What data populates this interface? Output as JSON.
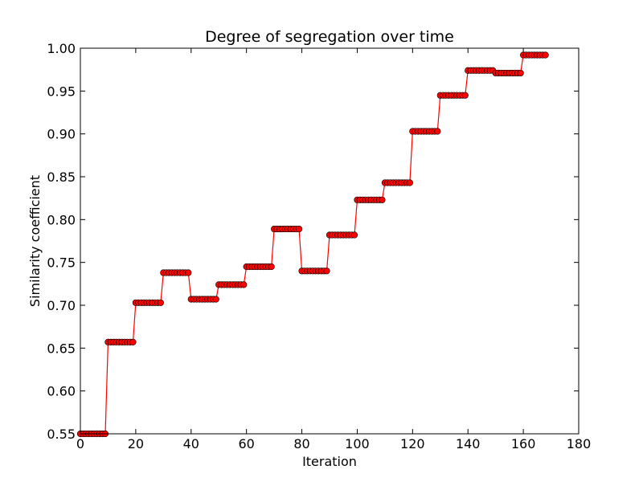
{
  "chart_data": {
    "type": "line",
    "title": "Degree of segregation over time",
    "xlabel": "Iteration",
    "ylabel": "Similarity coefficient",
    "xlim": [
      0,
      180
    ],
    "ylim": [
      0.55,
      1.0
    ],
    "xticks": [
      "0",
      "20",
      "40",
      "60",
      "80",
      "100",
      "120",
      "140",
      "160",
      "180"
    ],
    "yticks": [
      "0.55",
      "0.60",
      "0.65",
      "0.70",
      "0.75",
      "0.80",
      "0.85",
      "0.90",
      "0.95",
      "1.00"
    ],
    "grid": false,
    "legend": "none",
    "series": [
      {
        "color": "#ff0000",
        "marker": "circle",
        "x": [
          0,
          1,
          2,
          3,
          4,
          5,
          6,
          7,
          8,
          9,
          10,
          11,
          12,
          13,
          14,
          15,
          16,
          17,
          18,
          19,
          20,
          21,
          22,
          23,
          24,
          25,
          26,
          27,
          28,
          29,
          30,
          31,
          32,
          33,
          34,
          35,
          36,
          37,
          38,
          39,
          40,
          41,
          42,
          43,
          44,
          45,
          46,
          47,
          48,
          49,
          50,
          51,
          52,
          53,
          54,
          55,
          56,
          57,
          58,
          59,
          60,
          61,
          62,
          63,
          64,
          65,
          66,
          67,
          68,
          69,
          70,
          71,
          72,
          73,
          74,
          75,
          76,
          77,
          78,
          79,
          80,
          81,
          82,
          83,
          84,
          85,
          86,
          87,
          88,
          89,
          90,
          91,
          92,
          93,
          94,
          95,
          96,
          97,
          98,
          99,
          100,
          101,
          102,
          103,
          104,
          105,
          106,
          107,
          108,
          109,
          110,
          111,
          112,
          113,
          114,
          115,
          116,
          117,
          118,
          119,
          120,
          121,
          122,
          123,
          124,
          125,
          126,
          127,
          128,
          129,
          130,
          131,
          132,
          133,
          134,
          135,
          136,
          137,
          138,
          139,
          140,
          141,
          142,
          143,
          144,
          145,
          146,
          147,
          148,
          149,
          150,
          151,
          152,
          153,
          154,
          155,
          156,
          157,
          158,
          159,
          160,
          161,
          162,
          163,
          164,
          165,
          166,
          167,
          168
        ],
        "y": [
          0.55,
          0.55,
          0.55,
          0.55,
          0.55,
          0.55,
          0.55,
          0.55,
          0.55,
          0.55,
          0.657,
          0.657,
          0.657,
          0.657,
          0.657,
          0.657,
          0.657,
          0.657,
          0.657,
          0.657,
          0.703,
          0.703,
          0.703,
          0.703,
          0.703,
          0.703,
          0.703,
          0.703,
          0.703,
          0.703,
          0.738,
          0.738,
          0.738,
          0.738,
          0.738,
          0.738,
          0.738,
          0.738,
          0.738,
          0.738,
          0.707,
          0.707,
          0.707,
          0.707,
          0.707,
          0.707,
          0.707,
          0.707,
          0.707,
          0.707,
          0.724,
          0.724,
          0.724,
          0.724,
          0.724,
          0.724,
          0.724,
          0.724,
          0.724,
          0.724,
          0.745,
          0.745,
          0.745,
          0.745,
          0.745,
          0.745,
          0.745,
          0.745,
          0.745,
          0.745,
          0.789,
          0.789,
          0.789,
          0.789,
          0.789,
          0.789,
          0.789,
          0.789,
          0.789,
          0.789,
          0.74,
          0.74,
          0.74,
          0.74,
          0.74,
          0.74,
          0.74,
          0.74,
          0.74,
          0.74,
          0.782,
          0.782,
          0.782,
          0.782,
          0.782,
          0.782,
          0.782,
          0.782,
          0.782,
          0.782,
          0.823,
          0.823,
          0.823,
          0.823,
          0.823,
          0.823,
          0.823,
          0.823,
          0.823,
          0.823,
          0.843,
          0.843,
          0.843,
          0.843,
          0.843,
          0.843,
          0.843,
          0.843,
          0.843,
          0.843,
          0.903,
          0.903,
          0.903,
          0.903,
          0.903,
          0.903,
          0.903,
          0.903,
          0.903,
          0.903,
          0.945,
          0.945,
          0.945,
          0.945,
          0.945,
          0.945,
          0.945,
          0.945,
          0.945,
          0.945,
          0.974,
          0.974,
          0.974,
          0.974,
          0.974,
          0.974,
          0.974,
          0.974,
          0.974,
          0.974,
          0.971,
          0.971,
          0.971,
          0.971,
          0.971,
          0.971,
          0.971,
          0.971,
          0.971,
          0.971,
          0.992,
          0.992,
          0.992,
          0.992,
          0.992,
          0.992,
          0.992,
          0.992,
          0.992
        ]
      }
    ]
  }
}
